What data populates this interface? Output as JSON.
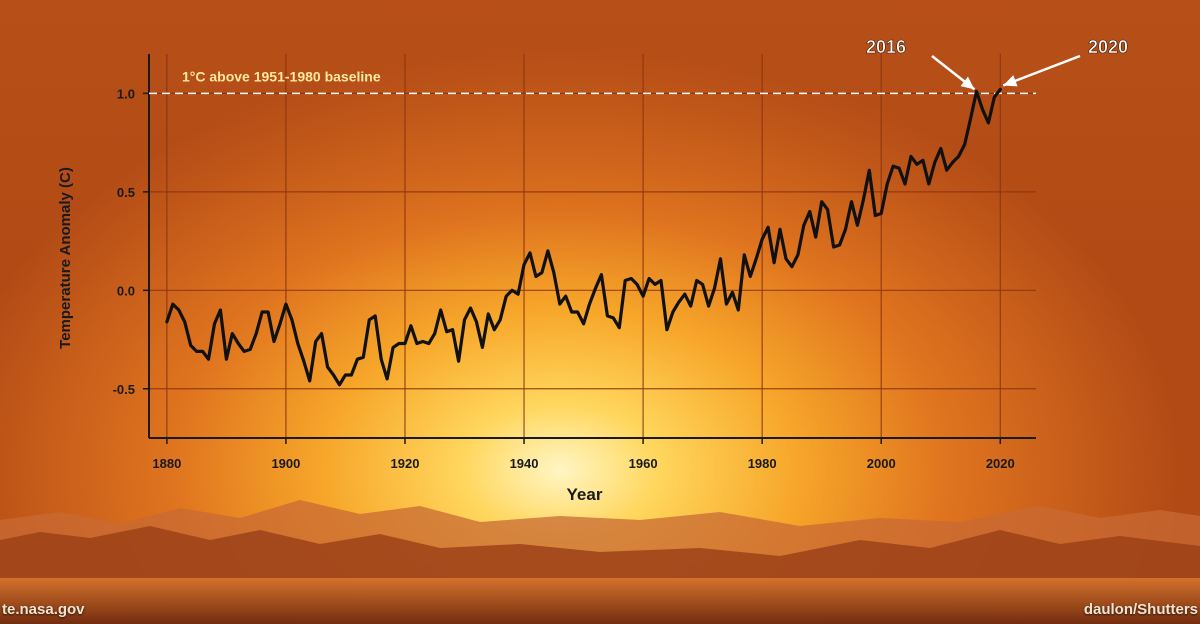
{
  "colors": {
    "line": "#111111",
    "grid": "#8a3410",
    "axis": "#1a1a1a",
    "baseline": "#ffffff",
    "baseline_label": "#ffe9a0"
  },
  "credits": {
    "left": "te.nasa.gov",
    "right": "daulon/Shutters"
  },
  "chart_data": {
    "type": "line",
    "title": "",
    "xlabel": "Year",
    "ylabel": "Temperature Anomaly (C)",
    "xlim": [
      1877,
      2026
    ],
    "ylim": [
      -0.75,
      1.2
    ],
    "xticks": [
      1880,
      1900,
      1920,
      1940,
      1960,
      1980,
      2000,
      2020
    ],
    "yticks": [
      -0.5,
      0.0,
      0.5,
      1.0
    ],
    "ytick_labels": [
      "-0.5",
      "0.0",
      "0.5",
      "1.0"
    ],
    "grid": true,
    "reference_line": {
      "y": 1.0,
      "label": "1°C above 1951-1980 baseline"
    },
    "annotations": [
      {
        "text": "2016",
        "x": 2016,
        "y": 1.01
      },
      {
        "text": "2020",
        "x": 2020,
        "y": 1.02
      }
    ],
    "series": [
      {
        "x": [
          1880,
          1881,
          1882,
          1883,
          1884,
          1885,
          1886,
          1887,
          1888,
          1889,
          1890,
          1891,
          1892,
          1893,
          1894,
          1895,
          1896,
          1897,
          1898,
          1899,
          1900,
          1901,
          1902,
          1903,
          1904,
          1905,
          1906,
          1907,
          1908,
          1909,
          1910,
          1911,
          1912,
          1913,
          1914,
          1915,
          1916,
          1917,
          1918,
          1919,
          1920,
          1921,
          1922,
          1923,
          1924,
          1925,
          1926,
          1927,
          1928,
          1929,
          1930,
          1931,
          1932,
          1933,
          1934,
          1935,
          1936,
          1937,
          1938,
          1939,
          1940,
          1941,
          1942,
          1943,
          1944,
          1945,
          1946,
          1947,
          1948,
          1949,
          1950,
          1951,
          1952,
          1953,
          1954,
          1955,
          1956,
          1957,
          1958,
          1959,
          1960,
          1961,
          1962,
          1963,
          1964,
          1965,
          1966,
          1967,
          1968,
          1969,
          1970,
          1971,
          1972,
          1973,
          1974,
          1975,
          1976,
          1977,
          1978,
          1979,
          1980,
          1981,
          1982,
          1983,
          1984,
          1985,
          1986,
          1987,
          1988,
          1989,
          1990,
          1991,
          1992,
          1993,
          1994,
          1995,
          1996,
          1997,
          1998,
          1999,
          2000,
          2001,
          2002,
          2003,
          2004,
          2005,
          2006,
          2007,
          2008,
          2009,
          2010,
          2011,
          2012,
          2013,
          2014,
          2015,
          2016,
          2017,
          2018,
          2019,
          2020
        ],
        "values": [
          -0.16,
          -0.07,
          -0.1,
          -0.16,
          -0.28,
          -0.31,
          -0.31,
          -0.35,
          -0.17,
          -0.1,
          -0.35,
          -0.22,
          -0.27,
          -0.31,
          -0.3,
          -0.22,
          -0.11,
          -0.11,
          -0.26,
          -0.17,
          -0.07,
          -0.15,
          -0.27,
          -0.36,
          -0.46,
          -0.26,
          -0.22,
          -0.39,
          -0.43,
          -0.48,
          -0.43,
          -0.43,
          -0.35,
          -0.34,
          -0.15,
          -0.13,
          -0.35,
          -0.45,
          -0.29,
          -0.27,
          -0.27,
          -0.18,
          -0.27,
          -0.26,
          -0.27,
          -0.22,
          -0.1,
          -0.21,
          -0.2,
          -0.36,
          -0.15,
          -0.09,
          -0.16,
          -0.29,
          -0.12,
          -0.2,
          -0.15,
          -0.03,
          0.0,
          -0.02,
          0.13,
          0.19,
          0.07,
          0.09,
          0.2,
          0.09,
          -0.07,
          -0.03,
          -0.11,
          -0.11,
          -0.17,
          -0.07,
          0.01,
          0.08,
          -0.13,
          -0.14,
          -0.19,
          0.05,
          0.06,
          0.03,
          -0.03,
          0.06,
          0.03,
          0.05,
          -0.2,
          -0.11,
          -0.06,
          -0.02,
          -0.08,
          0.05,
          0.03,
          -0.08,
          0.01,
          0.16,
          -0.07,
          -0.01,
          -0.1,
          0.18,
          0.07,
          0.16,
          0.26,
          0.32,
          0.14,
          0.31,
          0.16,
          0.12,
          0.18,
          0.33,
          0.4,
          0.27,
          0.45,
          0.41,
          0.22,
          0.23,
          0.31,
          0.45,
          0.33,
          0.46,
          0.61,
          0.38,
          0.39,
          0.54,
          0.63,
          0.62,
          0.54,
          0.68,
          0.64,
          0.66,
          0.54,
          0.65,
          0.72,
          0.61,
          0.65,
          0.68,
          0.74,
          0.87,
          1.01,
          0.92,
          0.85,
          0.98,
          1.02
        ]
      }
    ]
  }
}
